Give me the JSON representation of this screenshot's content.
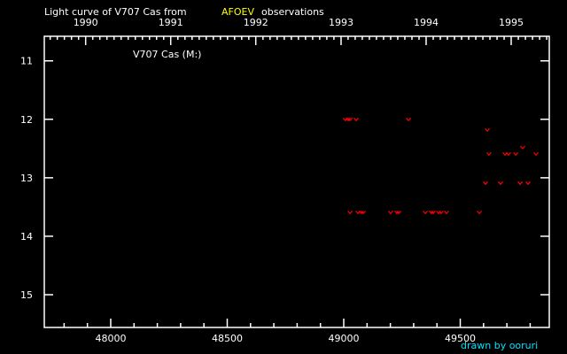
{
  "chart_data": {
    "type": "scatter",
    "title_prefix": "Light curve of V707 Cas from",
    "title_source": "AFOEV",
    "title_suffix": "observations",
    "series_label": "V707 Cas (M:)",
    "credit": "drawn by ooruri",
    "xlabel": "",
    "ylabel": "",
    "xlim": [
      47715,
      49882
    ],
    "ylim": [
      10.58,
      15.56
    ],
    "y_inverted": true,
    "x_ticks": [
      48000,
      48500,
      49000,
      49500
    ],
    "x_minor_step": 100,
    "y_ticks": [
      11,
      12,
      13,
      14,
      15
    ],
    "top_axis_years": [
      {
        "label": "1990",
        "jd": 47892.5
      },
      {
        "label": "1991",
        "jd": 48257.5
      },
      {
        "label": "1992",
        "jd": 48622.5
      },
      {
        "label": "1993",
        "jd": 48988.5
      },
      {
        "label": "1994",
        "jd": 49353.5
      },
      {
        "label": "1995",
        "jd": 49718.5
      }
    ],
    "grid": false,
    "colors": {
      "background": "#000000",
      "axes": "#ffffff",
      "points": "#ff0000",
      "source": "#ffff00",
      "credit": "#00e0ff"
    },
    "marker": "v",
    "points": [
      {
        "x": 49007,
        "y": 12.0
      },
      {
        "x": 49019,
        "y": 12.0
      },
      {
        "x": 49027,
        "y": 12.0
      },
      {
        "x": 49053,
        "y": 12.0
      },
      {
        "x": 49278,
        "y": 12.0
      },
      {
        "x": 49616,
        "y": 12.18
      },
      {
        "x": 49768,
        "y": 12.48
      },
      {
        "x": 49623,
        "y": 12.59
      },
      {
        "x": 49692,
        "y": 12.59
      },
      {
        "x": 49707,
        "y": 12.59
      },
      {
        "x": 49738,
        "y": 12.59
      },
      {
        "x": 49825,
        "y": 12.59
      },
      {
        "x": 49608,
        "y": 13.09
      },
      {
        "x": 49673,
        "y": 13.09
      },
      {
        "x": 49757,
        "y": 13.09
      },
      {
        "x": 49791,
        "y": 13.09
      },
      {
        "x": 49027,
        "y": 13.59
      },
      {
        "x": 49061,
        "y": 13.59
      },
      {
        "x": 49076,
        "y": 13.59
      },
      {
        "x": 49084,
        "y": 13.59
      },
      {
        "x": 49201,
        "y": 13.59
      },
      {
        "x": 49228,
        "y": 13.59
      },
      {
        "x": 49236,
        "y": 13.59
      },
      {
        "x": 49350,
        "y": 13.59
      },
      {
        "x": 49376,
        "y": 13.59
      },
      {
        "x": 49384,
        "y": 13.59
      },
      {
        "x": 49407,
        "y": 13.59
      },
      {
        "x": 49418,
        "y": 13.59
      },
      {
        "x": 49441,
        "y": 13.59
      },
      {
        "x": 49582,
        "y": 13.59
      }
    ]
  }
}
